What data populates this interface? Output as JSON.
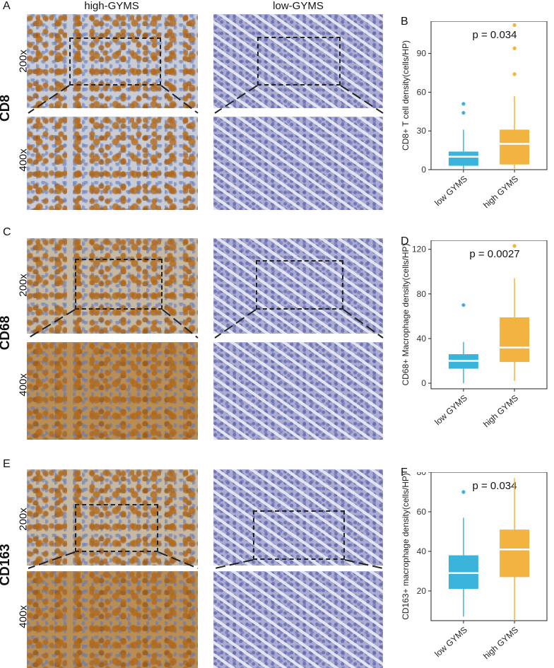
{
  "figure": {
    "col_left": "high-GYMS",
    "col_right": "low-GYMS",
    "mag_high": "200x",
    "mag_low": "400x",
    "rows": [
      {
        "letter": "A",
        "marker": "CD8"
      },
      {
        "letter": "C",
        "marker": "CD68"
      },
      {
        "letter": "E",
        "marker": "CD163"
      }
    ]
  },
  "colors": {
    "low": "#3bb4dc",
    "high": "#f3b341"
  },
  "chart_data": [
    {
      "letter": "B",
      "type": "box",
      "categories": [
        "low GYMS",
        "high GYMS"
      ],
      "ylabel": "CD8+ T cell density(cells/HP)",
      "pvalue": "p = 0.034",
      "ylim": [
        0,
        115
      ],
      "yticks": [
        0,
        30,
        60,
        90
      ],
      "boxes": [
        {
          "min": 0,
          "q1": 3,
          "median": 10,
          "q3": 14,
          "max": 31,
          "outliers": [
            44,
            51
          ]
        },
        {
          "min": 0,
          "q1": 4,
          "median": 20,
          "q3": 31,
          "max": 57,
          "outliers": [
            74,
            94,
            112
          ]
        }
      ]
    },
    {
      "letter": "D",
      "type": "box",
      "categories": [
        "low GYMS",
        "high GYMS"
      ],
      "ylabel": "CD68+ Macrophage density(cells/HP)",
      "pvalue": "p = 0.0027",
      "ylim": [
        -5,
        128
      ],
      "yticks": [
        0,
        40,
        80,
        120
      ],
      "boxes": [
        {
          "min": 0,
          "q1": 13,
          "median": 20,
          "q3": 26,
          "max": 37,
          "outliers": [
            70
          ]
        },
        {
          "min": 2,
          "q1": 19,
          "median": 32,
          "q3": 59,
          "max": 94,
          "outliers": [
            123
          ]
        }
      ]
    },
    {
      "letter": "F",
      "type": "box",
      "categories": [
        "low GYMS",
        "high GYMS"
      ],
      "ylabel": "CD163+ macrophage density(cells/HP)",
      "pvalue": "p = 0.034",
      "ylim": [
        5,
        80
      ],
      "yticks": [
        20,
        40,
        60,
        80
      ],
      "boxes": [
        {
          "min": 7,
          "q1": 21,
          "median": 29,
          "q3": 38,
          "max": 57,
          "outliers": [
            70
          ]
        },
        {
          "min": 5,
          "q1": 27,
          "median": 41,
          "q3": 51,
          "max": 77,
          "outliers": []
        }
      ]
    }
  ]
}
